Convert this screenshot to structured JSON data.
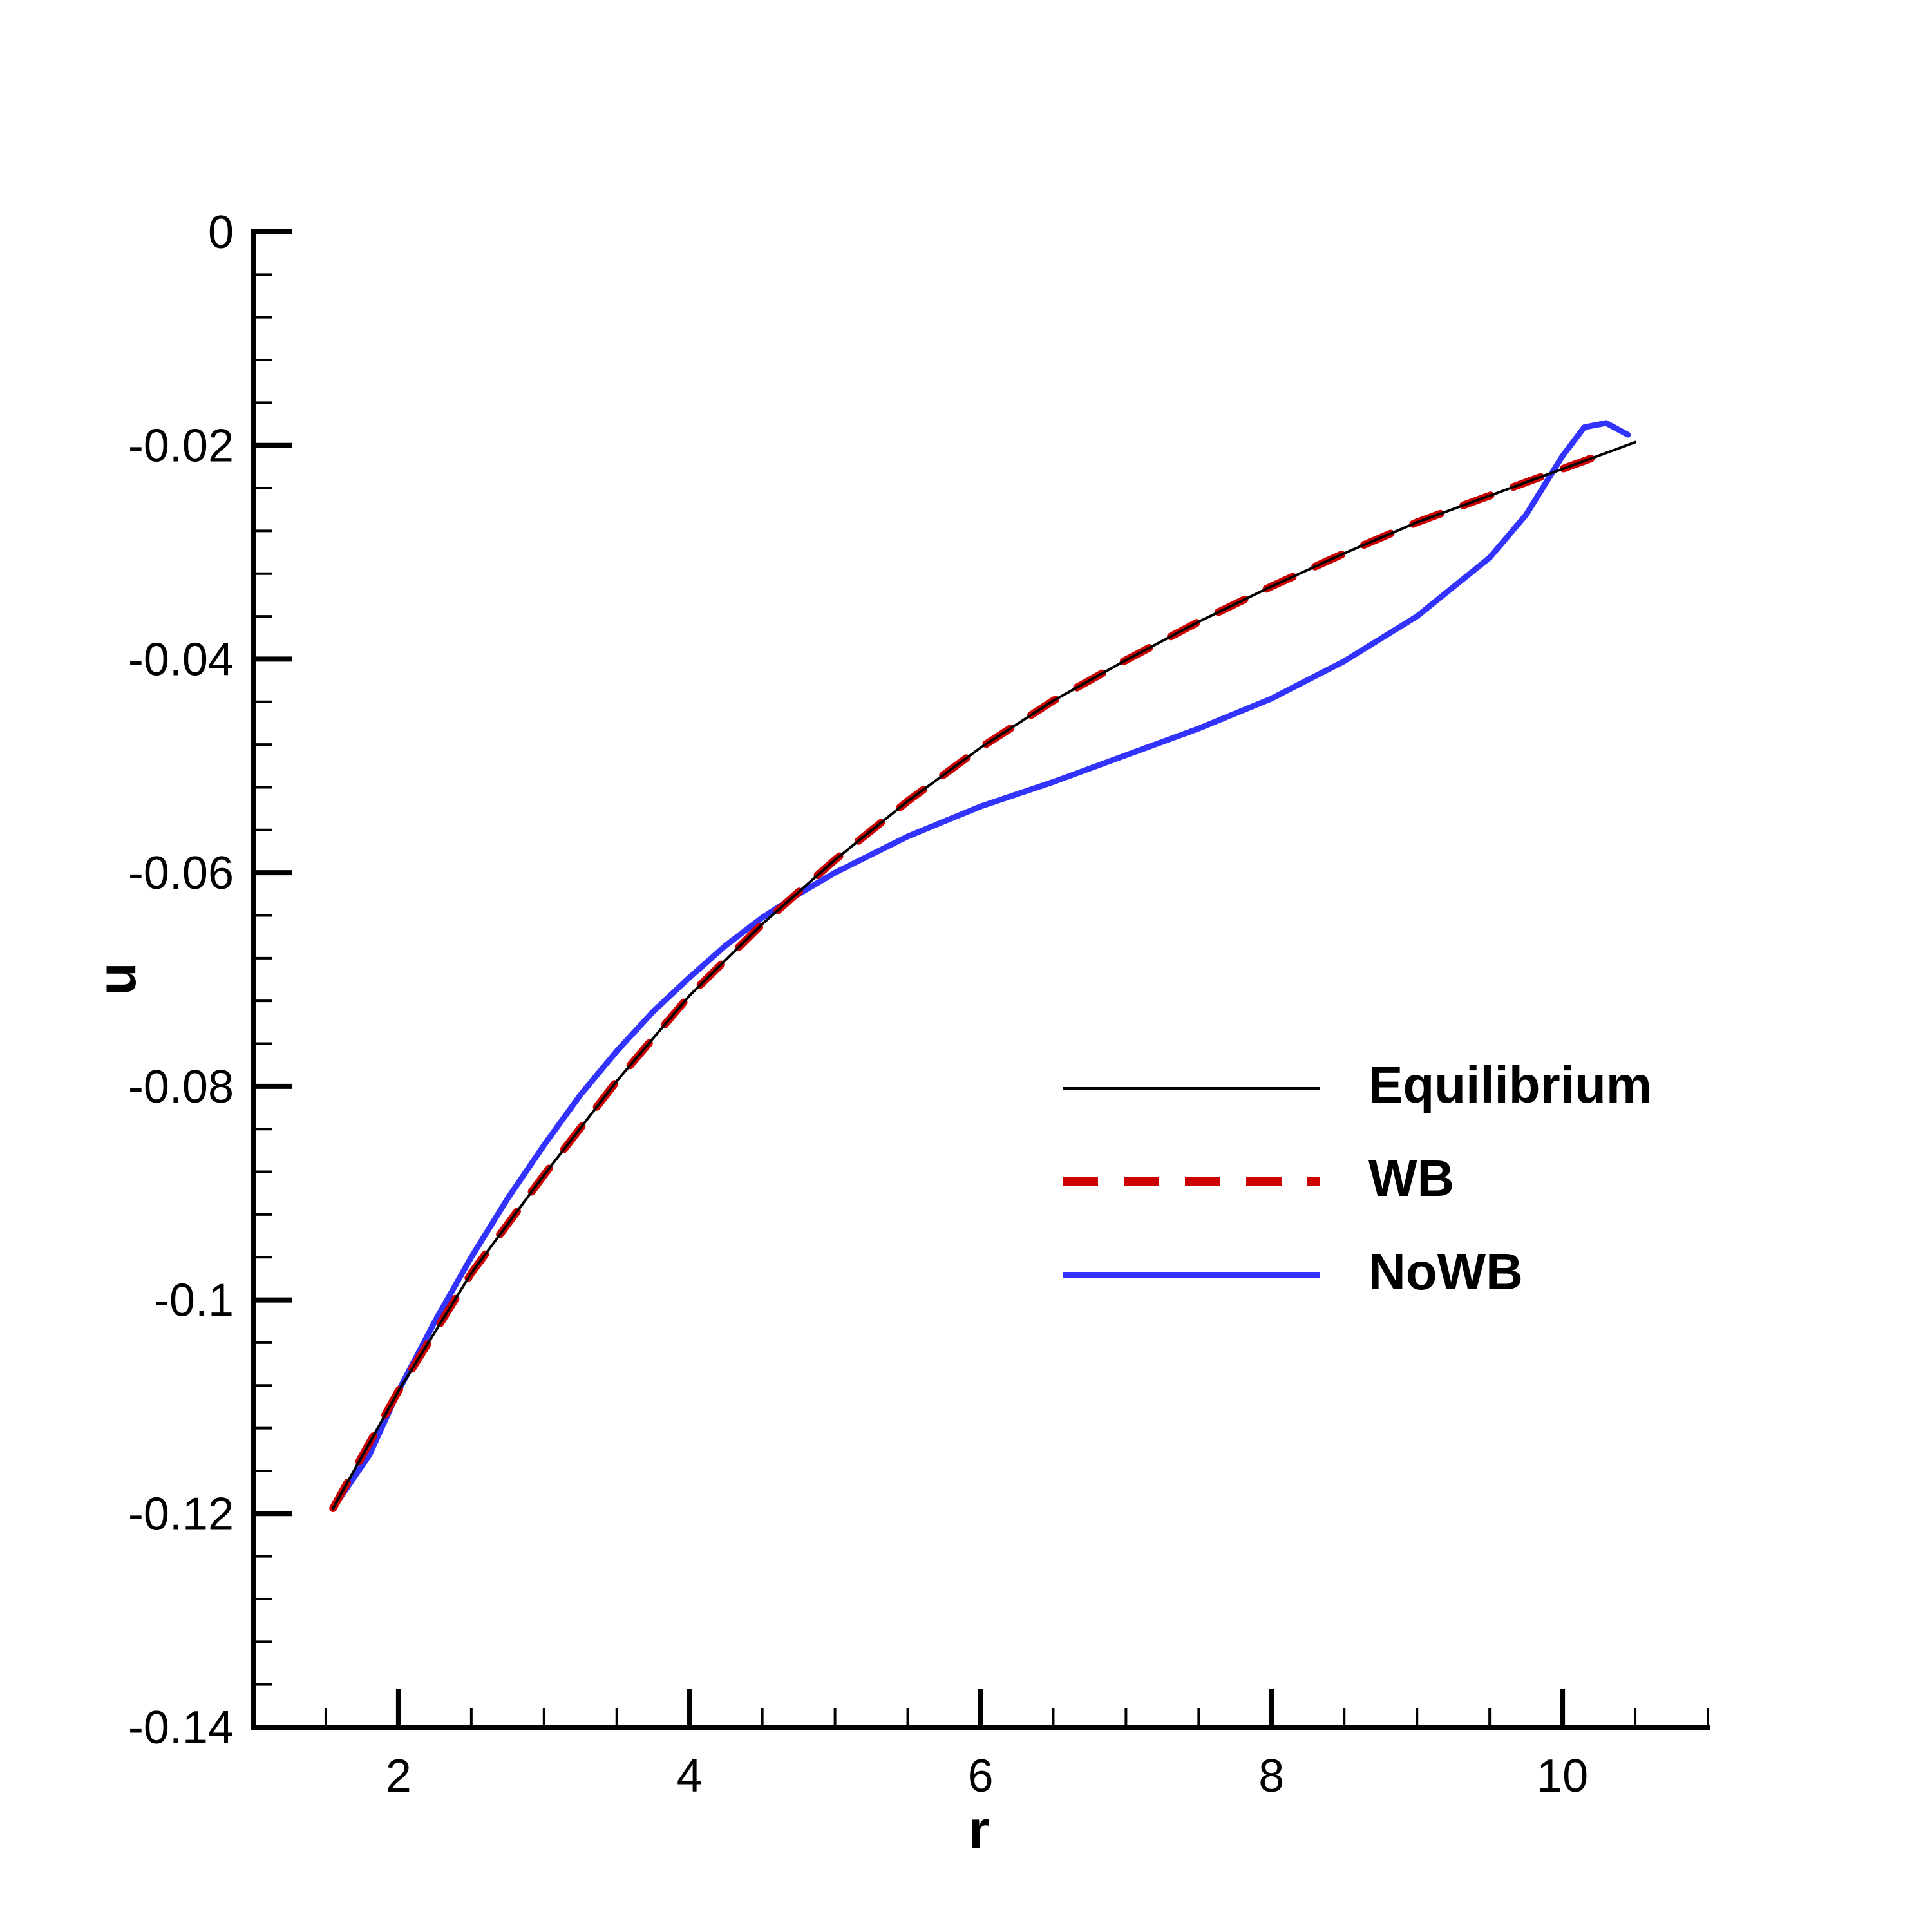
{
  "chart_data": {
    "type": "line",
    "title": "",
    "xlabel": "r",
    "ylabel": "u",
    "xlim": [
      1,
      11
    ],
    "ylim": [
      -0.14,
      0
    ],
    "x_ticks": [
      2,
      4,
      6,
      8,
      10
    ],
    "x_tick_labels": [
      "2",
      "4",
      "6",
      "8",
      "10"
    ],
    "x_minor_step": 0.5,
    "y_ticks": [
      0,
      -0.02,
      -0.04,
      -0.06,
      -0.08,
      -0.1,
      -0.12,
      -0.14
    ],
    "y_tick_labels": [
      "0",
      "-0.02",
      "-0.04",
      "-0.06",
      "-0.08",
      "-0.1",
      "-0.12",
      "-0.14"
    ],
    "y_minor_step": 0.004,
    "grid": false,
    "legend_position": "center-right",
    "series": [
      {
        "name": "Equilibrium",
        "color": "#000000",
        "style": "solid",
        "x": [
          1.55,
          2.0,
          2.5,
          3.0,
          3.5,
          4.0,
          4.5,
          5.0,
          5.5,
          6.0,
          6.5,
          7.0,
          7.5,
          8.0,
          8.5,
          9.0,
          9.5,
          10.0,
          10.5
        ],
        "y": [
          -0.1195,
          -0.1085,
          -0.0975,
          -0.0883,
          -0.0795,
          -0.0715,
          -0.0648,
          -0.0588,
          -0.0533,
          -0.0483,
          -0.0439,
          -0.0401,
          -0.0365,
          -0.0332,
          -0.0301,
          -0.0272,
          -0.0247,
          -0.0222,
          -0.0197
        ]
      },
      {
        "name": "WB",
        "color": "#cc0000",
        "style": "dashed",
        "x": [
          1.55,
          2.0,
          2.5,
          3.0,
          3.5,
          4.0,
          4.5,
          5.0,
          5.5,
          6.0,
          6.5,
          7.0,
          7.5,
          8.0,
          8.5,
          9.0,
          9.5,
          10.0,
          10.2
        ],
        "y": [
          -0.1195,
          -0.1085,
          -0.0975,
          -0.0883,
          -0.0795,
          -0.0715,
          -0.0648,
          -0.0588,
          -0.0533,
          -0.0483,
          -0.0439,
          -0.0401,
          -0.0365,
          -0.0332,
          -0.0301,
          -0.0272,
          -0.0247,
          -0.0222,
          -0.0212
        ]
      },
      {
        "name": "NoWB",
        "color": "#3333ff",
        "style": "solid",
        "x": [
          1.55,
          1.8,
          2.0,
          2.25,
          2.5,
          2.75,
          3.0,
          3.25,
          3.5,
          3.75,
          4.0,
          4.25,
          4.5,
          4.75,
          5.0,
          5.25,
          5.5,
          5.75,
          6.0,
          6.5,
          7.0,
          7.5,
          8.0,
          8.5,
          9.0,
          9.5,
          9.75,
          10.0,
          10.15,
          10.3,
          10.45
        ],
        "y": [
          -0.1195,
          -0.1145,
          -0.1085,
          -0.102,
          -0.096,
          -0.0905,
          -0.0855,
          -0.0808,
          -0.0767,
          -0.073,
          -0.0698,
          -0.0668,
          -0.0642,
          -0.062,
          -0.06,
          -0.0583,
          -0.0566,
          -0.0552,
          -0.0538,
          -0.0515,
          -0.049,
          -0.0465,
          -0.0437,
          -0.0402,
          -0.036,
          -0.0305,
          -0.0265,
          -0.021,
          -0.0183,
          -0.0179,
          -0.019
        ]
      }
    ]
  }
}
